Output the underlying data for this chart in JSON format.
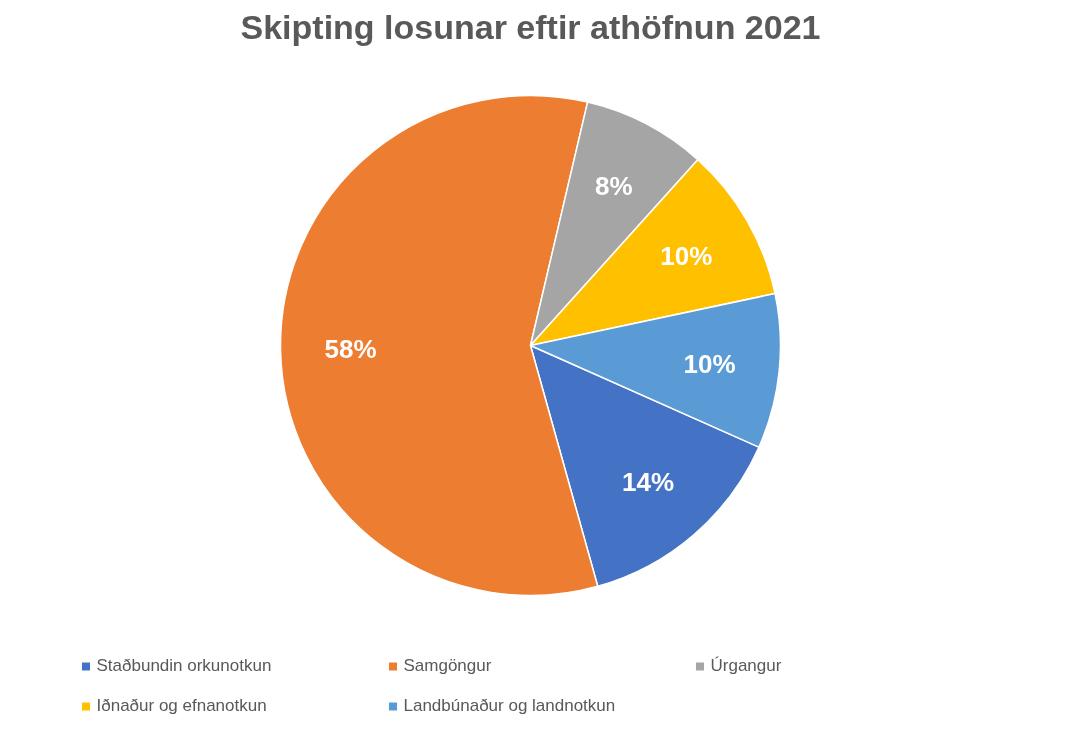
{
  "chart_data": {
    "type": "pie",
    "title": "Skipting losunar eftir athöfnun 2021",
    "categories": [
      "Staðbundin orkunotkun",
      "Samgöngur",
      "Úrgangur",
      "Iðnaður og efnanotkun",
      "Landbúnaður og landnotkun"
    ],
    "values": [
      14,
      58,
      8,
      10,
      10
    ],
    "colors": [
      "#4472c4",
      "#ed7d31",
      "#a5a5a5",
      "#ffc000",
      "#5b9bd5"
    ],
    "value_labels": [
      "14%",
      "58%",
      "8%",
      "10%",
      "10%"
    ],
    "legend": "bottom"
  }
}
